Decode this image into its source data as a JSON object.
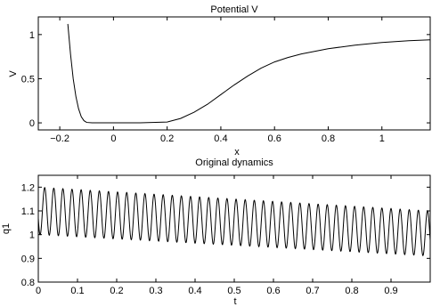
{
  "chart_data": [
    {
      "type": "line",
      "title": "Potential V",
      "xlabel": "x",
      "ylabel": "V",
      "xlim": [
        -0.28,
        1.18
      ],
      "ylim": [
        -0.08,
        1.2
      ],
      "grid": false,
      "xticks": [
        -0.2,
        0,
        0.2,
        0.4,
        0.6,
        0.8,
        1
      ],
      "xtick_labels": [
        "−0.2",
        "0",
        "0.2",
        "0.4",
        "0.6",
        "0.8",
        "1"
      ],
      "yticks": [
        0,
        0.5,
        1
      ],
      "ytick_labels": [
        "0",
        "0.5",
        "1"
      ],
      "series": [
        {
          "x": [
            -0.17,
            -0.16,
            -0.15,
            -0.14,
            -0.13,
            -0.12,
            -0.11,
            -0.1,
            -0.08,
            -0.05,
            0.0,
            0.1,
            0.2,
            0.25,
            0.3,
            0.35,
            0.4,
            0.45,
            0.5,
            0.55,
            0.6,
            0.65,
            0.7,
            0.8,
            0.9,
            1.0,
            1.1,
            1.18
          ],
          "y": [
            1.12,
            0.78,
            0.5,
            0.3,
            0.16,
            0.07,
            0.025,
            0.005,
            0.0,
            0.0,
            0.0,
            0.0,
            0.01,
            0.05,
            0.12,
            0.21,
            0.32,
            0.43,
            0.53,
            0.62,
            0.69,
            0.74,
            0.78,
            0.84,
            0.88,
            0.91,
            0.93,
            0.94
          ]
        }
      ]
    },
    {
      "type": "line",
      "title": "Original dynamics",
      "xlabel": "t",
      "ylabel": "q1",
      "xlim": [
        0,
        1
      ],
      "ylim": [
        0.8,
        1.25
      ],
      "grid": false,
      "xticks": [
        0,
        0.1,
        0.2,
        0.3,
        0.4,
        0.5,
        0.6,
        0.7,
        0.8,
        0.9
      ],
      "xtick_labels": [
        "0",
        "0.1",
        "0.2",
        "0.3",
        "0.4",
        "0.5",
        "0.6",
        "0.7",
        "0.8",
        "0.9"
      ],
      "yticks": [
        0.8,
        0.9,
        1,
        1.1,
        1.2
      ],
      "ytick_labels": [
        "0.8",
        "0.9",
        "1",
        "1.1",
        "1.2"
      ],
      "series": [
        {
          "oscillation": {
            "cycles": 43,
            "peak_start": 1.2,
            "peak_end": 1.1,
            "trough_start": 1.0,
            "trough_end": 0.91
          }
        }
      ]
    }
  ]
}
